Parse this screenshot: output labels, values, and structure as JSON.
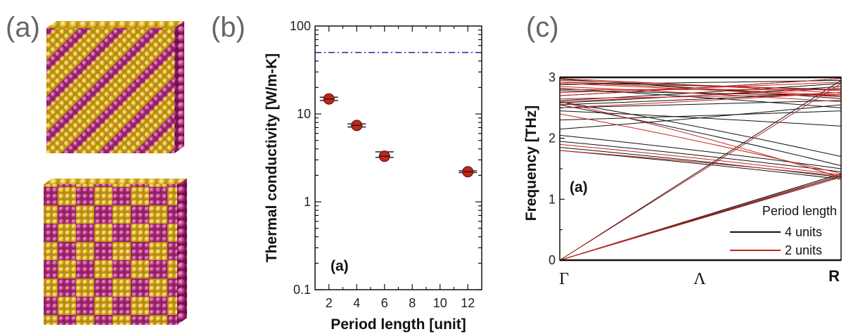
{
  "panels": {
    "a": "(a)",
    "b": "(b)",
    "c": "(c)"
  },
  "colors": {
    "atom_gold": "#e3b72b",
    "atom_magenta": "#c23b8c",
    "marker_red": "#c0261a",
    "dashed_blue": "#1f2a9c",
    "band_red": "#c2261f",
    "band_black": "#111111"
  },
  "chart_data": [
    {
      "type": "scatter",
      "xlabel": "Period length [unit]",
      "ylabel": "Thermal conductivity [W/m-K]",
      "yscale": "log",
      "ylim": [
        0.1,
        100
      ],
      "xlim": [
        1,
        13
      ],
      "x_ticks": [
        "2",
        "4",
        "6",
        "8",
        "10",
        "12"
      ],
      "y_ticks": [
        "0.1",
        "1",
        "10",
        "100"
      ],
      "inset_label": "(a)",
      "series": [
        {
          "x": [
            2,
            4,
            6,
            12
          ],
          "y": [
            14.8,
            7.4,
            3.3,
            2.2
          ],
          "err_y": [
            [
              14.2,
              15.5
            ],
            [
              7.1,
              7.7
            ],
            [
              3.2,
              3.7
            ],
            [
              2.15,
              2.25
            ]
          ]
        }
      ],
      "reference_line": {
        "y": 50,
        "style": "dash-dot"
      }
    },
    {
      "type": "line",
      "xlabel": "",
      "ylabel": "Frequency [THz]",
      "ylim": [
        0,
        3
      ],
      "y_ticks": [
        "0",
        "1",
        "2",
        "3"
      ],
      "x_ticks": [
        "Γ",
        "Λ",
        "R"
      ],
      "inset_label": "(a)",
      "legend_title": "Period length",
      "series": [
        {
          "name": "4 units",
          "bands": [
            [
              0,
              1.38
            ],
            [
              0,
              1.42
            ],
            [
              0,
              2.95
            ],
            [
              1.8,
              1.33
            ],
            [
              1.85,
              1.36
            ],
            [
              1.95,
              1.45
            ],
            [
              2.05,
              1.5
            ],
            [
              2.15,
              2.55
            ],
            [
              2.3,
              2.45
            ],
            [
              2.5,
              2.62
            ],
            [
              2.55,
              2.75
            ],
            [
              2.58,
              2.85
            ],
            [
              2.62,
              2.9
            ],
            [
              2.7,
              2.98
            ],
            [
              2.78,
              2.7
            ],
            [
              2.82,
              2.5
            ],
            [
              2.88,
              2.95
            ],
            [
              2.92,
              2.8
            ],
            [
              2.97,
              2.65
            ],
            [
              2.55,
              1.55
            ],
            [
              2.6,
              1.7
            ],
            [
              2.45,
              2.2
            ]
          ]
        },
        {
          "name": "2 units",
          "bands": [
            [
              0,
              1.4
            ],
            [
              0,
              1.36
            ],
            [
              0,
              2.9
            ],
            [
              1.8,
              1.38
            ],
            [
              1.9,
              1.4
            ],
            [
              2.4,
              1.42
            ],
            [
              2.6,
              1.36
            ],
            [
              2.5,
              2.75
            ],
            [
              2.65,
              2.72
            ],
            [
              2.8,
              2.8
            ],
            [
              2.9,
              2.68
            ],
            [
              2.95,
              2.78
            ],
            [
              2.85,
              2.6
            ],
            [
              2.6,
              2.82
            ],
            [
              2.75,
              2.92
            ],
            [
              2.92,
              2.7
            ],
            [
              2.7,
              2.98
            ],
            [
              2.98,
              2.74
            ]
          ]
        }
      ]
    }
  ]
}
